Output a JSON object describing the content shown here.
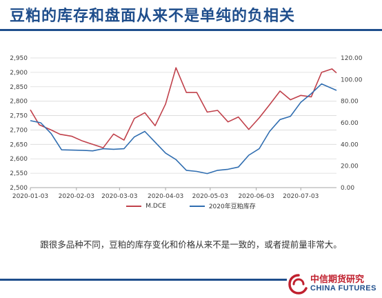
{
  "slide": {
    "title": "豆粕的库存和盘面从来不是单纯的负相关",
    "caption": "跟很多品种不同，豆粕的库存变化和价格从来不是一致的，或者提前量非常大。"
  },
  "brand": {
    "name_cn": "中信期货研究",
    "name_en": "CHINA FUTURES"
  },
  "colors": {
    "title": "#1F4E8C",
    "rule": "#1F4E8C",
    "series_price": "#C0404A",
    "series_stock": "#2F6DB0",
    "brand_red": "#C0202E"
  },
  "chart_data": {
    "type": "line",
    "title": "",
    "grid": true,
    "legend": "bottom",
    "x_ticks": [
      "2020-01-03",
      "2020-02-03",
      "2020-03-03",
      "2020-04-03",
      "2020-05-03",
      "2020-06-03",
      "2020-07-03"
    ],
    "y_left": {
      "min": 2500,
      "max": 2950,
      "step": 50,
      "ticks": [
        "2,500",
        "2,550",
        "2,600",
        "2,650",
        "2,700",
        "2,750",
        "2,800",
        "2,850",
        "2,900",
        "2,950"
      ]
    },
    "y_right": {
      "min": 0,
      "max": 120,
      "step": 20,
      "ticks": [
        "0.00",
        "20.00",
        "40.00",
        "60.00",
        "80.00",
        "100.00",
        "120.00"
      ]
    },
    "x_range": [
      "2020-01-03",
      "2020-07-27"
    ],
    "series": [
      {
        "name": "M.DCE",
        "axis": "left",
        "points": [
          [
            "2020-01-03",
            2770
          ],
          [
            "2020-01-09",
            2718
          ],
          [
            "2020-01-17",
            2700
          ],
          [
            "2020-01-23",
            2685
          ],
          [
            "2020-01-31",
            2678
          ],
          [
            "2020-02-07",
            2662
          ],
          [
            "2020-02-14",
            2650
          ],
          [
            "2020-02-21",
            2638
          ],
          [
            "2020-02-28",
            2686
          ],
          [
            "2020-03-06",
            2665
          ],
          [
            "2020-03-13",
            2740
          ],
          [
            "2020-03-20",
            2760
          ],
          [
            "2020-03-27",
            2715
          ],
          [
            "2020-04-03",
            2790
          ],
          [
            "2020-04-10",
            2916
          ],
          [
            "2020-04-17",
            2830
          ],
          [
            "2020-04-24",
            2830
          ],
          [
            "2020-05-01",
            2762
          ],
          [
            "2020-05-08",
            2768
          ],
          [
            "2020-05-15",
            2728
          ],
          [
            "2020-05-22",
            2745
          ],
          [
            "2020-05-29",
            2702
          ],
          [
            "2020-06-05",
            2742
          ],
          [
            "2020-06-12",
            2788
          ],
          [
            "2020-06-19",
            2835
          ],
          [
            "2020-06-26",
            2805
          ],
          [
            "2020-07-03",
            2820
          ],
          [
            "2020-07-10",
            2815
          ],
          [
            "2020-07-17",
            2900
          ],
          [
            "2020-07-24",
            2912
          ],
          [
            "2020-07-27",
            2898
          ]
        ]
      },
      {
        "name": "2020年豆粕库存",
        "axis": "right",
        "points": [
          [
            "2020-01-03",
            62
          ],
          [
            "2020-01-10",
            60
          ],
          [
            "2020-01-17",
            50
          ],
          [
            "2020-01-24",
            35
          ],
          [
            "2020-02-07",
            34.5
          ],
          [
            "2020-02-14",
            34
          ],
          [
            "2020-02-21",
            36
          ],
          [
            "2020-02-28",
            35.5
          ],
          [
            "2020-03-06",
            36
          ],
          [
            "2020-03-13",
            47
          ],
          [
            "2020-03-20",
            52
          ],
          [
            "2020-03-27",
            42
          ],
          [
            "2020-04-03",
            32
          ],
          [
            "2020-04-10",
            26
          ],
          [
            "2020-04-17",
            16
          ],
          [
            "2020-04-24",
            15
          ],
          [
            "2020-05-01",
            13
          ],
          [
            "2020-05-08",
            16
          ],
          [
            "2020-05-15",
            17
          ],
          [
            "2020-05-22",
            19
          ],
          [
            "2020-05-29",
            30
          ],
          [
            "2020-06-05",
            36
          ],
          [
            "2020-06-12",
            52
          ],
          [
            "2020-06-19",
            63
          ],
          [
            "2020-06-26",
            66
          ],
          [
            "2020-07-03",
            79
          ],
          [
            "2020-07-10",
            87
          ],
          [
            "2020-07-17",
            96
          ],
          [
            "2020-07-27",
            90
          ]
        ]
      }
    ]
  }
}
